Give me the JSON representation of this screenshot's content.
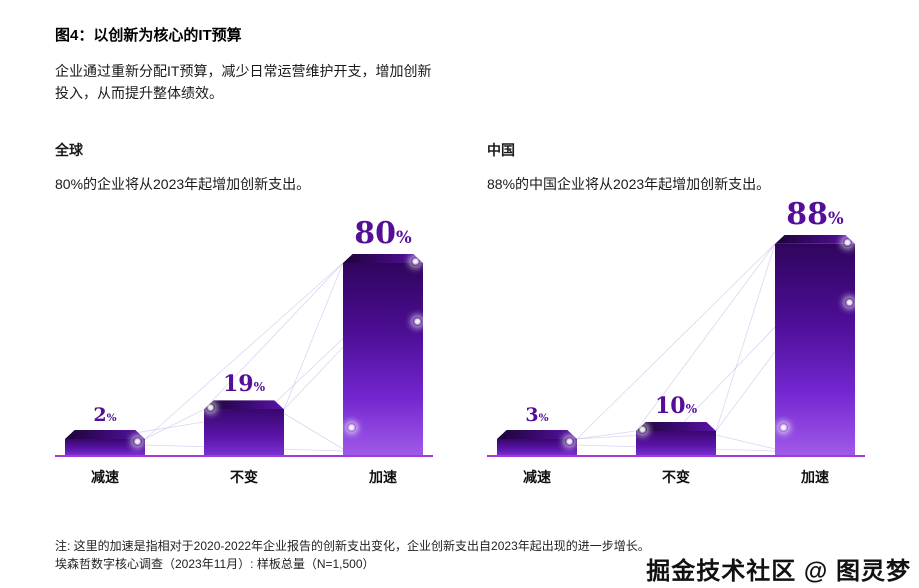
{
  "page": {
    "title": "图4：以创新为核心的IT预算",
    "description": [
      "企业通过重新分配IT预算，减少日常运营维护开支，增加创新",
      "投入，从而提升整体绩效。"
    ],
    "notes": [
      "注: 这里的加速是指相对于2020-2022年企业报告的创新支出变化，企业创新支出自2023年起出现的进一步增长。",
      "埃森哲数字核心调查（2023年11月）: 样板总量（N=1,500）"
    ],
    "watermark": "掘金技术社区 @ 图灵梦"
  },
  "colors": {
    "value_label": "#540e97",
    "axis": "#a43ad6",
    "bar_dark": "#30055e",
    "bar_light": "#a05ae8",
    "deco_line": "#c3b2ea",
    "text": "#1a1a1a"
  },
  "chart_data": [
    {
      "type": "bar",
      "title": "全球",
      "subtitle": "80%的企业将从2023年起增加创新支出。",
      "categories": [
        "减速",
        "不变",
        "加速"
      ],
      "values": [
        2,
        19,
        80
      ],
      "value_labels": [
        "2%",
        "19%",
        "80%"
      ],
      "xlabel": "",
      "ylabel": "",
      "ylim": [
        0,
        100
      ],
      "grid": false,
      "legend": "none",
      "bar_color": "purple-gradient"
    },
    {
      "type": "bar",
      "title": "中国",
      "subtitle": "88%的中国企业将从2023年起增加创新支出。",
      "categories": [
        "减速",
        "不变",
        "加速"
      ],
      "values": [
        3,
        10,
        88
      ],
      "value_labels": [
        "3%",
        "10%",
        "88%"
      ],
      "xlabel": "",
      "ylabel": "",
      "ylim": [
        0,
        100
      ],
      "grid": false,
      "legend": "none",
      "bar_color": "purple-gradient"
    }
  ]
}
